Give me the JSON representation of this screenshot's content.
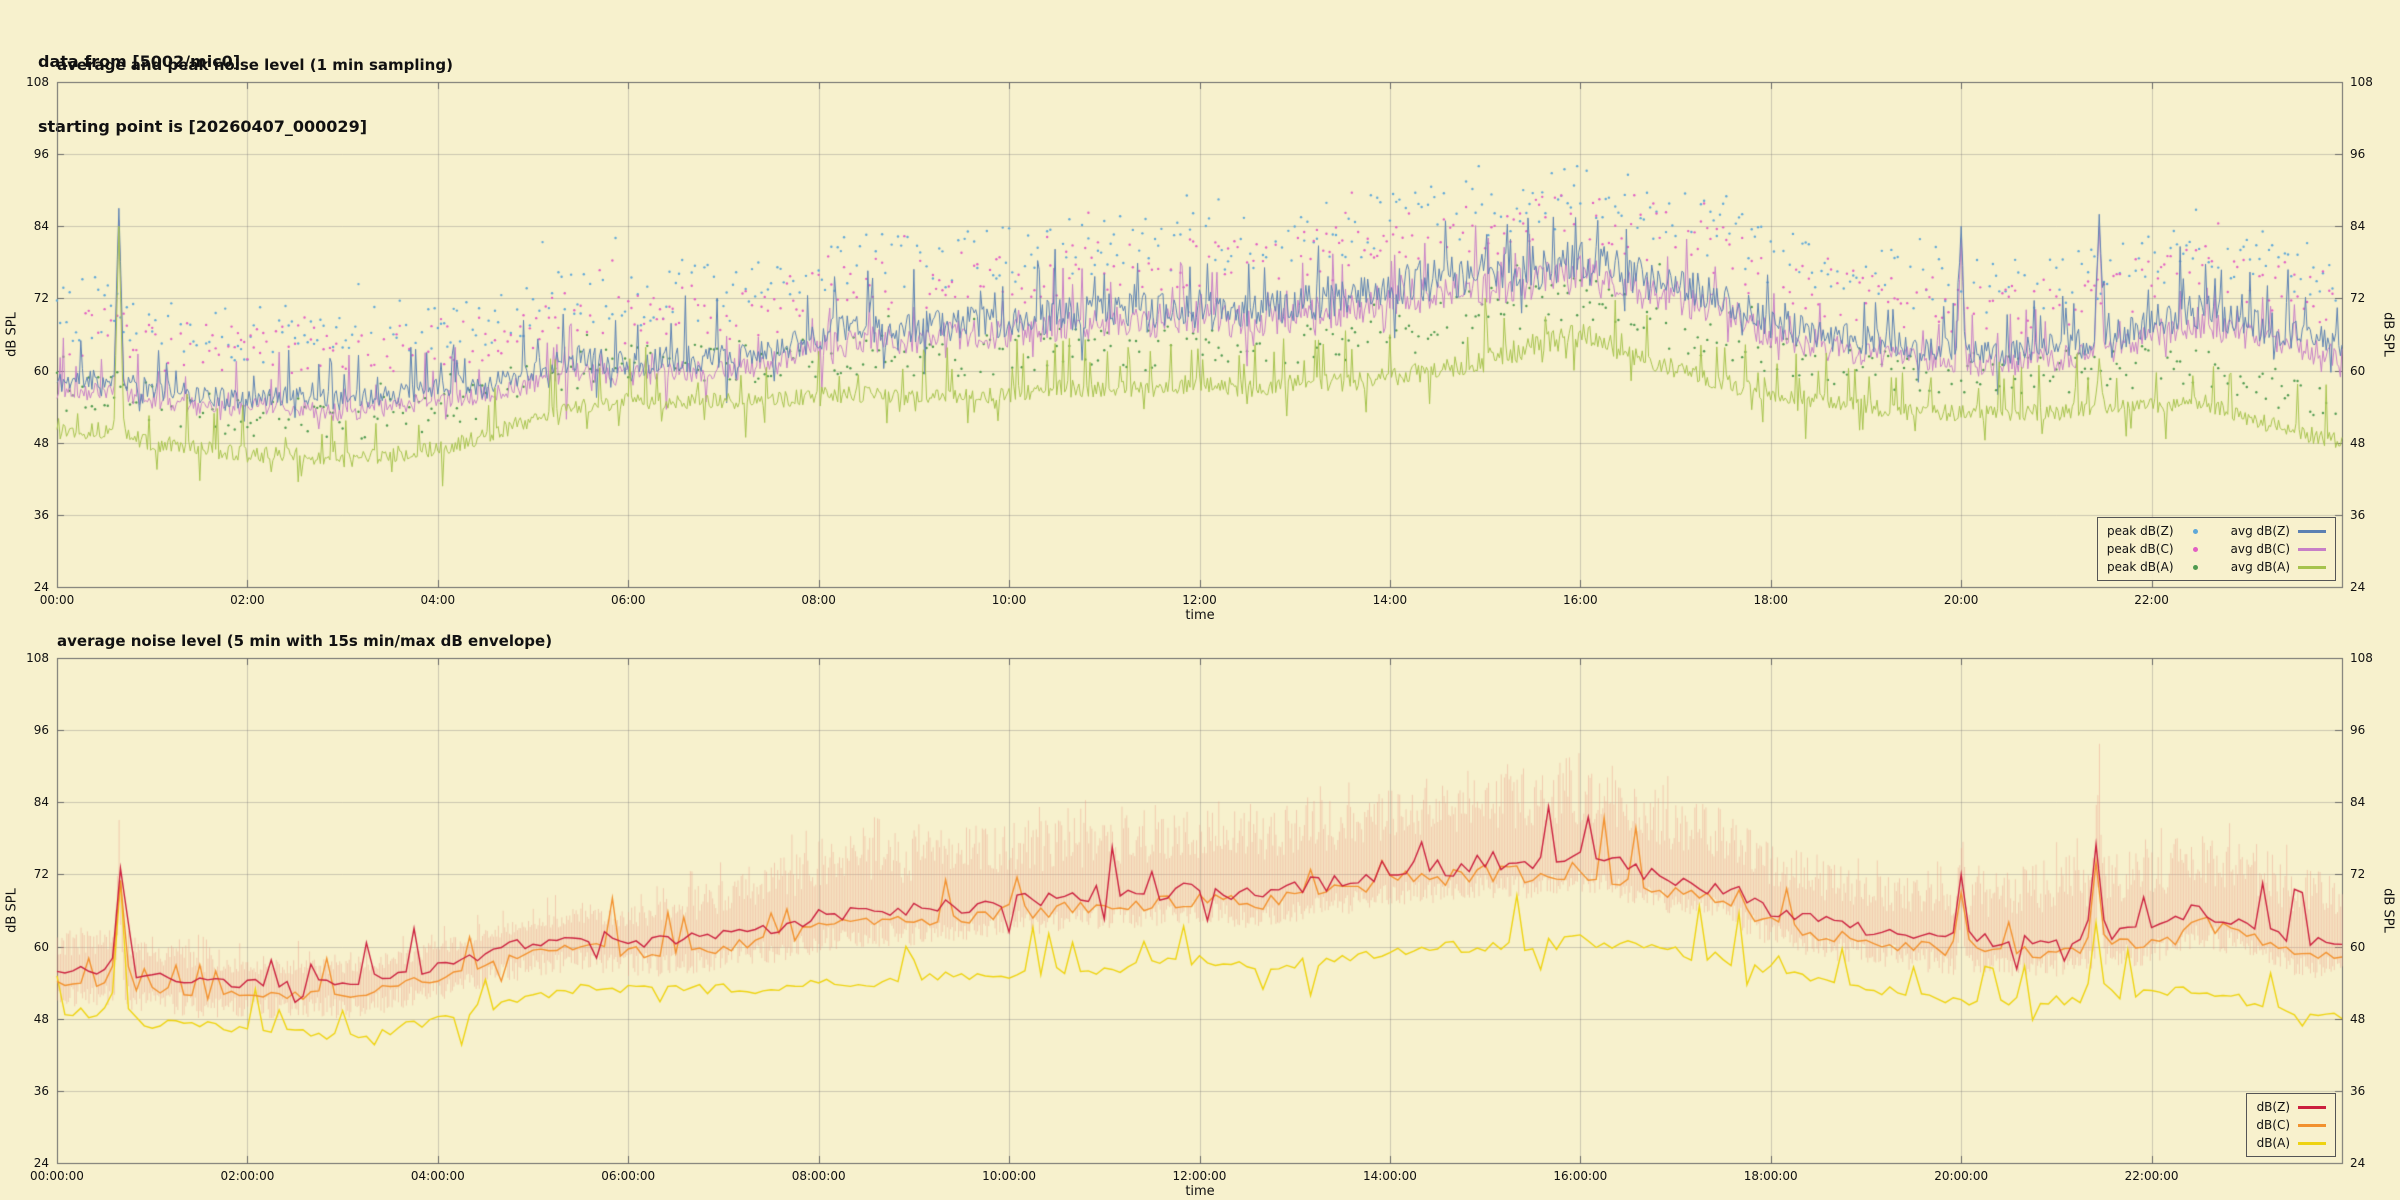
{
  "header": {
    "line1": "data from [5002/mic0]",
    "line2": "starting point is [20260407_000029]"
  },
  "style": {
    "background": "#f7f1cd",
    "grid": "rgba(120,120,120,0.35)",
    "axis": "#666666",
    "text": "#111111"
  },
  "chart_data": [
    {
      "type": "line",
      "title": "average and peak noise level (1 min sampling)",
      "xlabel": "time",
      "ylabel": "dB SPL",
      "ylabel_right": "dB SPL",
      "x_range_hours": [
        0,
        24
      ],
      "y_range": [
        24,
        108
      ],
      "grid": true,
      "legend_position": "bottom-right",
      "x_tick_hours": [
        0,
        2,
        4,
        6,
        8,
        10,
        12,
        14,
        16,
        18,
        20,
        22
      ],
      "x_tick_labels": [
        "00:00",
        "02:00",
        "04:00",
        "06:00",
        "08:00",
        "10:00",
        "12:00",
        "14:00",
        "16:00",
        "18:00",
        "20:00",
        "22:00"
      ],
      "y_ticks": [
        24,
        36,
        48,
        60,
        72,
        84,
        96,
        108
      ],
      "sample_step_hours": 0.5,
      "series": [
        {
          "name": "avg dB(Z)",
          "style": "line",
          "color": "#5b80b2",
          "noise_amp": 2.4,
          "values": [
            58,
            59,
            57,
            56,
            55,
            56,
            55,
            56,
            57,
            58,
            60,
            62,
            61,
            62,
            62,
            63,
            66,
            67,
            67,
            68,
            68,
            69,
            70,
            70,
            71,
            70,
            71,
            72,
            74,
            75,
            76,
            77,
            78,
            76,
            74,
            72,
            68,
            66,
            65,
            64,
            63,
            63,
            64,
            65,
            68,
            70,
            68,
            66,
            64
          ],
          "spikes": [
            {
              "t": 0.65,
              "v": 87
            },
            {
              "t": 20.0,
              "v": 84
            },
            {
              "t": 21.45,
              "v": 86
            }
          ]
        },
        {
          "name": "avg dB(C)",
          "style": "line",
          "color": "#c77fc7",
          "noise_amp": 2.2,
          "values": [
            56,
            57,
            55,
            54,
            54,
            54,
            53,
            54,
            55,
            56,
            58,
            60,
            59,
            60,
            60,
            61,
            64,
            65,
            65,
            66,
            66,
            67,
            68,
            68,
            69,
            68,
            69,
            70,
            72,
            73,
            74,
            75,
            76,
            74,
            72,
            70,
            66,
            64,
            63,
            62,
            61,
            61,
            62,
            63,
            66,
            68,
            66,
            64,
            62
          ],
          "spikes": [
            {
              "t": 0.65,
              "v": 85
            },
            {
              "t": 20.0,
              "v": 82
            },
            {
              "t": 21.45,
              "v": 84
            }
          ]
        },
        {
          "name": "avg dB(A)",
          "style": "line",
          "color": "#a6c34d",
          "noise_amp": 2.0,
          "values": [
            50,
            50,
            48,
            47,
            46,
            46,
            45,
            46,
            47,
            49,
            52,
            54,
            55,
            55,
            55,
            55,
            56,
            56,
            56,
            56,
            56,
            57,
            57,
            57,
            58,
            57,
            58,
            58,
            59,
            60,
            62,
            64,
            66,
            63,
            60,
            58,
            56,
            55,
            54,
            53,
            53,
            53,
            53,
            54,
            54,
            55,
            52,
            50,
            48
          ],
          "spikes": [
            {
              "t": 0.65,
              "v": 84
            },
            {
              "t": 21.45,
              "v": 62
            }
          ]
        }
      ],
      "scatter": [
        {
          "name": "peak dB(Z)",
          "color": "#5fa8d8",
          "base": 0,
          "offset_min": 6,
          "offset_max": 16
        },
        {
          "name": "peak dB(C)",
          "color": "#e25fc3",
          "base": 1,
          "offset_min": 5,
          "offset_max": 14
        },
        {
          "name": "peak dB(A)",
          "color": "#4f9a4f",
          "base": 2,
          "offset_min": 3,
          "offset_max": 10
        }
      ],
      "legend": [
        {
          "label": "peak dB(Z)",
          "marker": "dot",
          "color": "#5fa8d8"
        },
        {
          "label": "avg dB(Z)",
          "marker": "line",
          "color": "#5b80b2"
        },
        {
          "label": "peak dB(C)",
          "marker": "dot",
          "color": "#e25fc3"
        },
        {
          "label": "avg dB(C)",
          "marker": "line",
          "color": "#c77fc7"
        },
        {
          "label": "peak dB(A)",
          "marker": "dot",
          "color": "#4f9a4f"
        },
        {
          "label": "avg dB(A)",
          "marker": "line",
          "color": "#a6c34d"
        }
      ]
    },
    {
      "type": "line",
      "title": "average noise level (5 min with 15s min/max dB envelope)",
      "xlabel": "time",
      "ylabel": "dB SPL",
      "ylabel_right": "dB SPL",
      "x_range_hours": [
        0,
        24
      ],
      "y_range": [
        24,
        108
      ],
      "grid": true,
      "legend_position": "bottom-right",
      "x_tick_hours": [
        0,
        2,
        4,
        6,
        8,
        10,
        12,
        14,
        16,
        18,
        20,
        22
      ],
      "x_tick_labels": [
        "00:00:00",
        "02:00:00",
        "04:00:00",
        "06:00:00",
        "08:00:00",
        "10:00:00",
        "12:00:00",
        "14:00:00",
        "16:00:00",
        "18:00:00",
        "20:00:00",
        "22:00:00"
      ],
      "y_ticks": [
        24,
        36,
        48,
        60,
        72,
        84,
        96,
        108
      ],
      "sample_step_hours": 0.5,
      "envelope": {
        "base": 0,
        "color": "rgba(236,158,138,0.45)",
        "below": 4,
        "amp_by_hour": [
          7,
          6,
          4,
          4,
          4,
          4,
          5,
          10,
          13,
          13,
          13,
          13,
          13,
          14,
          14,
          15,
          15,
          14,
          12,
          9,
          10,
          14,
          14,
          13,
          12
        ]
      },
      "series": [
        {
          "name": "dB(Z)",
          "style": "line",
          "color": "#cb1f3e",
          "noise_amp": 1.3,
          "values": [
            56,
            56,
            55,
            54,
            54,
            54,
            54,
            55,
            57,
            59,
            61,
            62,
            61,
            61,
            62,
            63,
            65,
            66,
            66,
            67,
            68,
            68,
            69,
            69,
            70,
            69,
            70,
            71,
            73,
            73,
            74,
            74,
            75,
            73,
            71,
            70,
            66,
            64,
            63,
            62,
            61,
            61,
            61,
            62,
            63,
            66,
            64,
            61,
            60
          ],
          "spikes": [
            {
              "t": 0.65,
              "v": 73
            },
            {
              "t": 20.0,
              "v": 72
            },
            {
              "t": 21.45,
              "v": 77
            }
          ]
        },
        {
          "name": "dB(C)",
          "style": "line",
          "color": "#f2912e",
          "noise_amp": 1.2,
          "values": [
            54,
            54,
            53,
            52,
            52,
            52,
            52,
            53,
            55,
            57,
            59,
            60,
            59,
            59,
            60,
            61,
            63,
            64,
            64,
            65,
            66,
            66,
            67,
            67,
            68,
            67,
            68,
            69,
            71,
            71,
            72,
            72,
            73,
            71,
            69,
            68,
            64,
            62,
            61,
            60,
            59,
            59,
            59,
            60,
            61,
            64,
            62,
            59,
            58
          ],
          "spikes": [
            {
              "t": 0.65,
              "v": 71
            },
            {
              "t": 20.0,
              "v": 69
            },
            {
              "t": 21.45,
              "v": 74
            }
          ]
        },
        {
          "name": "dB(A)",
          "style": "line",
          "color": "#eed311",
          "noise_amp": 1.2,
          "values": [
            49,
            49,
            47,
            47,
            46,
            46,
            45,
            46,
            48,
            50,
            52,
            53,
            53,
            53,
            53,
            53,
            54,
            54,
            55,
            55,
            55,
            56,
            56,
            57,
            58,
            57,
            57,
            58,
            59,
            60,
            60,
            60,
            61,
            60,
            59,
            58,
            56,
            54,
            53,
            52,
            51,
            51,
            51,
            52,
            52,
            53,
            51,
            49,
            48
          ],
          "spikes": [
            {
              "t": 0.65,
              "v": 71
            },
            {
              "t": 21.45,
              "v": 64
            }
          ]
        }
      ],
      "legend": [
        {
          "label": "dB(Z)",
          "marker": "line",
          "color": "#cb1f3e"
        },
        {
          "label": "dB(C)",
          "marker": "line",
          "color": "#f2912e"
        },
        {
          "label": "dB(A)",
          "marker": "line",
          "color": "#eed311"
        }
      ]
    }
  ]
}
